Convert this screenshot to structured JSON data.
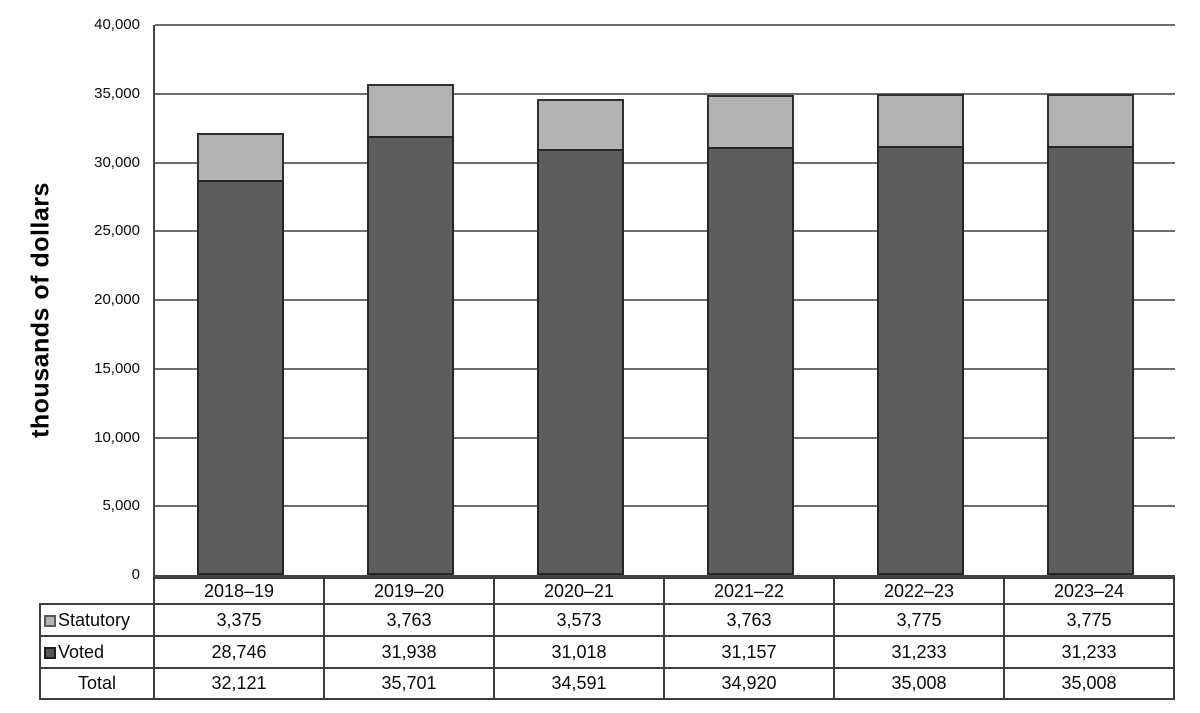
{
  "chart_data": {
    "type": "bar",
    "stacked": true,
    "title": "",
    "ylabel": "thousands of dollars",
    "xlabel": "",
    "ylim": [
      0,
      40000
    ],
    "ytick_step": 5000,
    "grid": true,
    "legend_position": "table-rows-below-chart",
    "categories": [
      "2018–19",
      "2019–20",
      "2020–21",
      "2021–22",
      "2022–23",
      "2023–24"
    ],
    "series": [
      {
        "name": "Statutory",
        "color": "#b3b3b3",
        "values": [
          3375,
          3763,
          3573,
          3763,
          3775,
          3775
        ]
      },
      {
        "name": "Voted",
        "color": "#5d5d5d",
        "values": [
          28746,
          31938,
          31018,
          31157,
          31233,
          31233
        ]
      }
    ],
    "totals": {
      "label": "Total",
      "values": [
        32121,
        35701,
        34591,
        34920,
        35008,
        35008
      ]
    },
    "yticks": [
      {
        "v": 0,
        "label": "0"
      },
      {
        "v": 5000,
        "label": "5,000"
      },
      {
        "v": 10000,
        "label": "10,000"
      },
      {
        "v": 15000,
        "label": "15,000"
      },
      {
        "v": 20000,
        "label": "20,000"
      },
      {
        "v": 25000,
        "label": "25,000"
      },
      {
        "v": 30000,
        "label": "30,000"
      },
      {
        "v": 35000,
        "label": "35,000"
      },
      {
        "v": 40000,
        "label": "40,000"
      }
    ]
  },
  "table": {
    "header_years": [
      "2018–19",
      "2019–20",
      "2020–21",
      "2021–22",
      "2022–23",
      "2023–24"
    ],
    "rows": [
      {
        "label": "Statutory",
        "swatch_color": "#b3b3b3",
        "swatch_border": "#5a5a5a",
        "cells": [
          "3,375",
          "3,763",
          "3,573",
          "3,763",
          "3,775",
          "3,775"
        ]
      },
      {
        "label": "Voted",
        "swatch_color": "#565656",
        "swatch_border": "#1c1c1c",
        "cells": [
          "28,746",
          "31,938",
          "31,018",
          "31,157",
          "31,233",
          "31,233"
        ]
      },
      {
        "label": "Total",
        "swatch_color": null,
        "swatch_border": null,
        "cells": [
          "32,121",
          "35,701",
          "34,591",
          "34,920",
          "35,008",
          "35,008"
        ]
      }
    ]
  },
  "colors": {
    "statutory_fill": "#b3b3b3",
    "voted_fill": "#5d5d5d",
    "gridline": "#6e6e6e",
    "axis": "#454545",
    "table_border": "#3d3d3d"
  }
}
